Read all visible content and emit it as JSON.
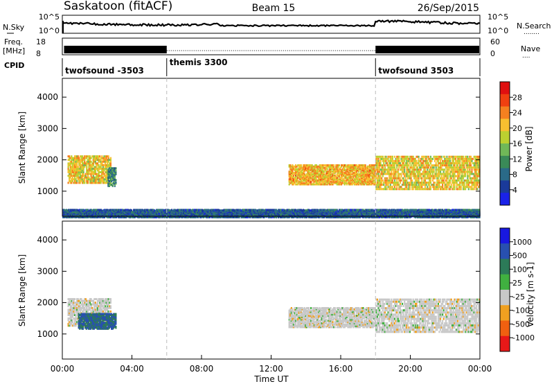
{
  "header": {
    "station": "Saskatoon (fitACF)",
    "beam": "Beam 15",
    "date": "26/Sep/2015"
  },
  "nsky_panel": {
    "left_label": "N.Sky",
    "left_ticks": [
      "10^5",
      "10^0"
    ],
    "right_ticks": [
      "10^5",
      "10^0"
    ],
    "right_label": "N.Search",
    "right_label_line": "........"
  },
  "freq_panel": {
    "left_label_line1": "Freq.",
    "left_label_line2": "[MHz]",
    "left_ticks": [
      "18",
      "8"
    ],
    "right_ticks": [
      "60",
      "0"
    ],
    "right_label": "Nave",
    "right_label_line": "...."
  },
  "cpid": {
    "label": "CPID",
    "segments": [
      {
        "label": "twofsound -3503",
        "start_hour": 0,
        "end_hour": 6
      },
      {
        "label": "themis 3300",
        "start_hour": 6,
        "end_hour": 18
      },
      {
        "label": "twofsound 3503",
        "start_hour": 18,
        "end_hour": 24
      }
    ]
  },
  "colorbars": {
    "power": {
      "title": "Power [dB]",
      "ticks": [
        "28",
        "24",
        "20",
        "16",
        "12",
        "8",
        "4"
      ],
      "colors": [
        "#e01010",
        "#f04010",
        "#f58020",
        "#f8c030",
        "#bcd030",
        "#70b858",
        "#3a8a58",
        "#2a6a88",
        "#1a3a9a",
        "#1a22e8"
      ]
    },
    "velocity": {
      "title": "Velocity [m s-1]",
      "ticks": [
        "1000",
        "500",
        "100",
        "25",
        "-25",
        "-100",
        "-500",
        "-1000"
      ],
      "colors": [
        "#1818e0",
        "#2850b0",
        "#2c7a58",
        "#40b040",
        "#c8c8c8",
        "#f0a020",
        "#f06010",
        "#e81818"
      ]
    }
  },
  "chart_data": [
    {
      "type": "heatmap",
      "panel": "power",
      "ylabel": "Slant Range [km]",
      "yticks": [
        "4000",
        "3000",
        "2000",
        "1000"
      ],
      "ylim": [
        200,
        4600
      ],
      "xlim": [
        0,
        24
      ],
      "series": [
        {
          "start_hour": 0.3,
          "end_hour": 2.8,
          "range_low_km": 1300,
          "range_high_km": 2200,
          "level_db": 20
        },
        {
          "start_hour": 2.6,
          "end_hour": 3.1,
          "range_low_km": 1200,
          "range_high_km": 1800,
          "level_db": 10
        },
        {
          "start_hour": 13.0,
          "end_hour": 18.0,
          "range_low_km": 1250,
          "range_high_km": 1900,
          "level_db": 22
        },
        {
          "start_hour": 18.0,
          "end_hour": 24.0,
          "range_low_km": 1100,
          "range_high_km": 2200,
          "level_db": 20
        },
        {
          "start_hour": 0.0,
          "end_hour": 24.0,
          "range_low_km": 200,
          "range_high_km": 450,
          "level_db": 6
        }
      ]
    },
    {
      "type": "heatmap",
      "panel": "velocity",
      "ylabel": "Slant Range [km]",
      "xlabel": "Time UT",
      "yticks": [
        "4000",
        "3000",
        "2000",
        "1000"
      ],
      "xticks": [
        "00:00",
        "04:00",
        "08:00",
        "12:00",
        "16:00",
        "20:00",
        "00:00"
      ],
      "ylim": [
        200,
        4600
      ],
      "xlim": [
        0,
        24
      ],
      "series": [
        {
          "start_hour": 0.3,
          "end_hour": 2.8,
          "range_low_km": 1300,
          "range_high_km": 2200,
          "velocity_ms": 0
        },
        {
          "start_hour": 0.9,
          "end_hour": 3.1,
          "range_low_km": 1200,
          "range_high_km": 1700,
          "velocity_ms": 300
        },
        {
          "start_hour": 13.0,
          "end_hour": 18.0,
          "range_low_km": 1250,
          "range_high_km": 1900,
          "velocity_ms": 0
        },
        {
          "start_hour": 18.0,
          "end_hour": 24.0,
          "range_low_km": 1100,
          "range_high_km": 2200,
          "velocity_ms": 0
        }
      ]
    }
  ]
}
